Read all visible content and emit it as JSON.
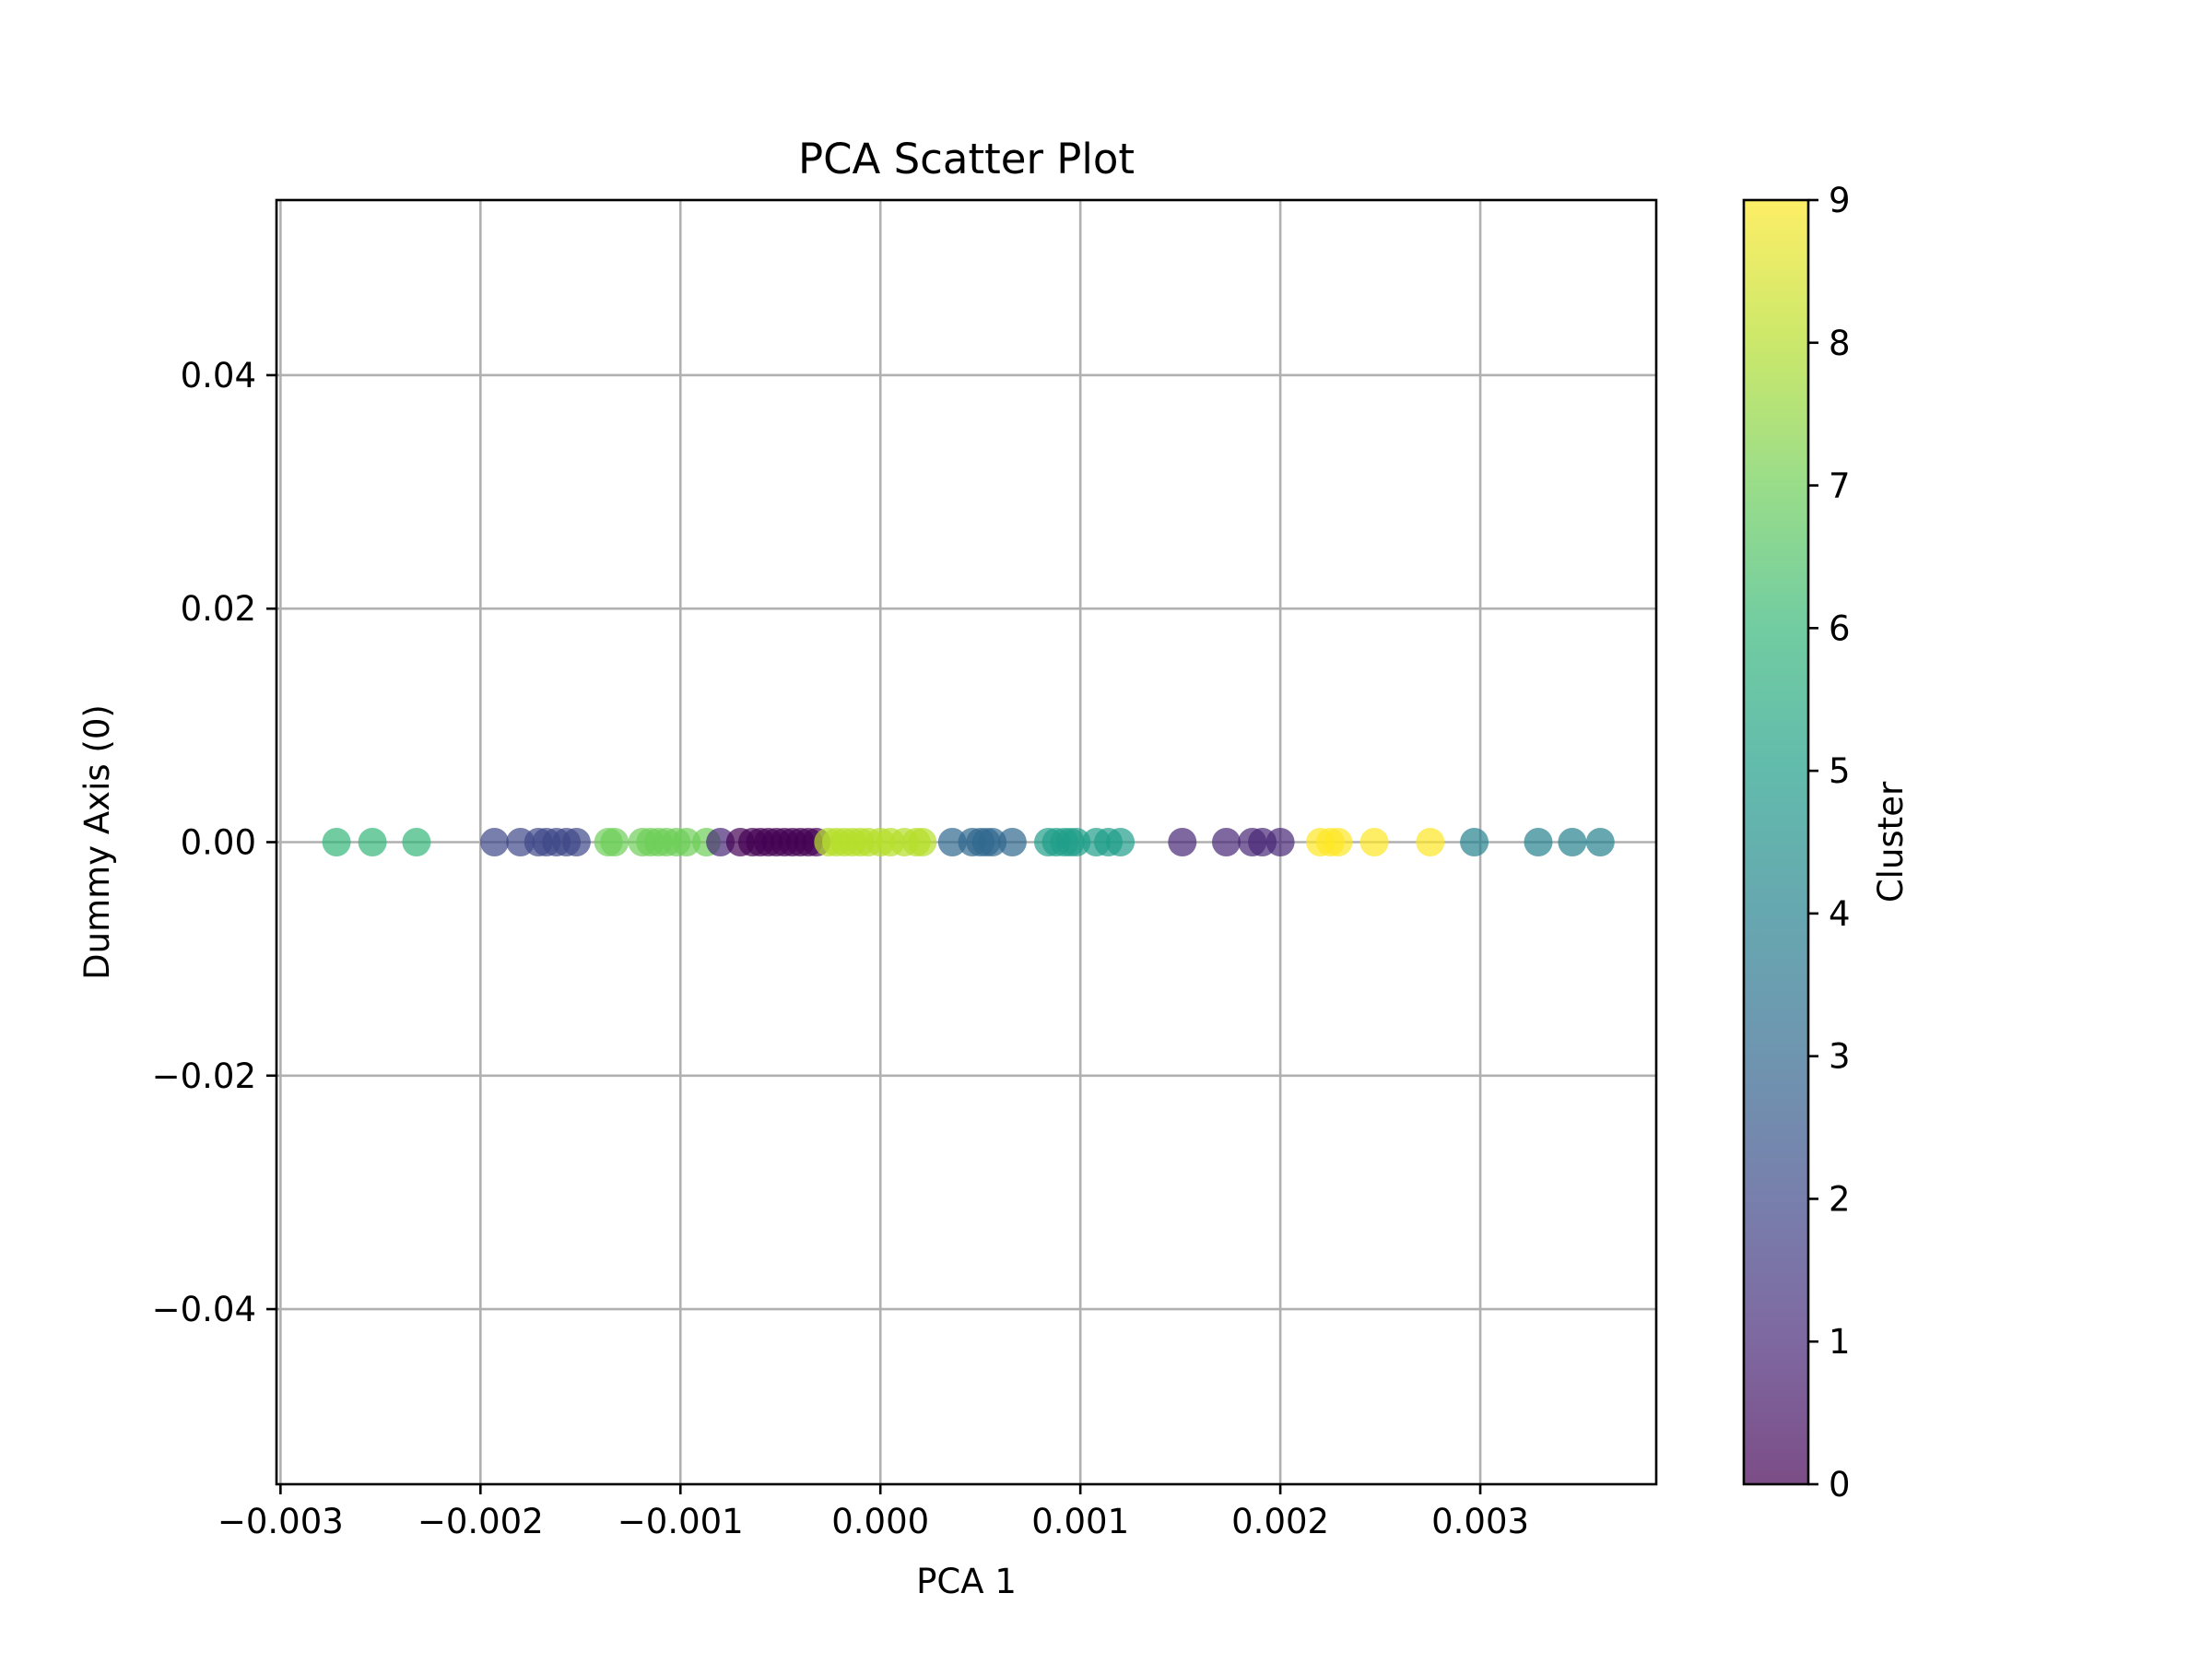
{
  "chart_data": {
    "type": "scatter",
    "title": "PCA Scatter Plot",
    "xlabel": "PCA 1",
    "ylabel": "Dummy Axis (0)",
    "xlim": [
      -0.00302,
      0.00388
    ],
    "ylim": [
      -0.055,
      0.055
    ],
    "grid": true,
    "xticks": [
      -0.003,
      -0.002,
      -0.001,
      0.0,
      0.001,
      0.002,
      0.003
    ],
    "xtick_labels": [
      "−0.003",
      "−0.002",
      "−0.001",
      "0.000",
      "0.001",
      "0.002",
      "0.003"
    ],
    "yticks": [
      0.04,
      0.02,
      0.0,
      -0.02,
      -0.04
    ],
    "ytick_labels": [
      "0.04",
      "0.02",
      "0.00",
      "−0.02",
      "−0.04"
    ],
    "marker_alpha": 0.7,
    "colormap": "viridis",
    "colormap_stops": [
      "#440154",
      "#482878",
      "#3e4989",
      "#31688e",
      "#26828e",
      "#1f9e89",
      "#35b779",
      "#6ece58",
      "#b5de2b",
      "#fde725"
    ],
    "colorbar": {
      "label": "Cluster",
      "range": [
        0,
        9
      ],
      "ticks": [
        0,
        1,
        2,
        3,
        4,
        5,
        6,
        7,
        8,
        9
      ],
      "tick_labels": [
        "0",
        "1",
        "2",
        "3",
        "4",
        "5",
        "6",
        "7",
        "8",
        "9"
      ]
    },
    "points": [
      {
        "x": -0.00272,
        "y": 0,
        "cluster": 6
      },
      {
        "x": -0.00254,
        "y": 0,
        "cluster": 6
      },
      {
        "x": -0.00232,
        "y": 0,
        "cluster": 6
      },
      {
        "x": -0.00193,
        "y": 0,
        "cluster": 2
      },
      {
        "x": -0.0018,
        "y": 0,
        "cluster": 2
      },
      {
        "x": -0.00171,
        "y": 0,
        "cluster": 2
      },
      {
        "x": -0.00167,
        "y": 0,
        "cluster": 2
      },
      {
        "x": -0.00162,
        "y": 0,
        "cluster": 2
      },
      {
        "x": -0.00157,
        "y": 0,
        "cluster": 2
      },
      {
        "x": -0.00152,
        "y": 0,
        "cluster": 2
      },
      {
        "x": -0.00136,
        "y": 0,
        "cluster": 7
      },
      {
        "x": -0.00133,
        "y": 0,
        "cluster": 7
      },
      {
        "x": -0.00119,
        "y": 0,
        "cluster": 7
      },
      {
        "x": -0.00115,
        "y": 0,
        "cluster": 7
      },
      {
        "x": -0.00111,
        "y": 0,
        "cluster": 7
      },
      {
        "x": -0.00107,
        "y": 0,
        "cluster": 7
      },
      {
        "x": -0.00102,
        "y": 0,
        "cluster": 7
      },
      {
        "x": -0.00097,
        "y": 0,
        "cluster": 7
      },
      {
        "x": -0.00087,
        "y": 0,
        "cluster": 7
      },
      {
        "x": -0.0008,
        "y": 0,
        "cluster": 1
      },
      {
        "x": -0.0007,
        "y": 0,
        "cluster": 0
      },
      {
        "x": -0.00064,
        "y": 0,
        "cluster": 0
      },
      {
        "x": -0.0006,
        "y": 0,
        "cluster": 0
      },
      {
        "x": -0.00056,
        "y": 0,
        "cluster": 0
      },
      {
        "x": -0.00052,
        "y": 0,
        "cluster": 0
      },
      {
        "x": -0.00048,
        "y": 0,
        "cluster": 0
      },
      {
        "x": -0.00044,
        "y": 0,
        "cluster": 0
      },
      {
        "x": -0.0004,
        "y": 0,
        "cluster": 0
      },
      {
        "x": -0.00036,
        "y": 0,
        "cluster": 0
      },
      {
        "x": -0.00032,
        "y": 0,
        "cluster": 0
      },
      {
        "x": -0.00026,
        "y": 0,
        "cluster": 8
      },
      {
        "x": -0.00022,
        "y": 0,
        "cluster": 8
      },
      {
        "x": -0.00018,
        "y": 0,
        "cluster": 8
      },
      {
        "x": -0.00014,
        "y": 0,
        "cluster": 8
      },
      {
        "x": -0.0001,
        "y": 0,
        "cluster": 8
      },
      {
        "x": -6e-05,
        "y": 0,
        "cluster": 8
      },
      {
        "x": 0.0,
        "y": 0,
        "cluster": 8
      },
      {
        "x": 5e-05,
        "y": 0,
        "cluster": 8
      },
      {
        "x": 0.00012,
        "y": 0,
        "cluster": 8
      },
      {
        "x": 0.00018,
        "y": 0,
        "cluster": 8
      },
      {
        "x": 0.00021,
        "y": 0,
        "cluster": 8
      },
      {
        "x": 0.00036,
        "y": 0,
        "cluster": 3
      },
      {
        "x": 0.00046,
        "y": 0,
        "cluster": 3
      },
      {
        "x": 0.0005,
        "y": 0,
        "cluster": 3
      },
      {
        "x": 0.00053,
        "y": 0,
        "cluster": 3
      },
      {
        "x": 0.00056,
        "y": 0,
        "cluster": 3
      },
      {
        "x": 0.00066,
        "y": 0,
        "cluster": 3
      },
      {
        "x": 0.00084,
        "y": 0,
        "cluster": 5
      },
      {
        "x": 0.00088,
        "y": 0,
        "cluster": 5
      },
      {
        "x": 0.00092,
        "y": 0,
        "cluster": 5
      },
      {
        "x": 0.00095,
        "y": 0,
        "cluster": 5
      },
      {
        "x": 0.00098,
        "y": 0,
        "cluster": 5
      },
      {
        "x": 0.00108,
        "y": 0,
        "cluster": 5
      },
      {
        "x": 0.00114,
        "y": 0,
        "cluster": 5
      },
      {
        "x": 0.0012,
        "y": 0,
        "cluster": 5
      },
      {
        "x": 0.00151,
        "y": 0,
        "cluster": 1
      },
      {
        "x": 0.00173,
        "y": 0,
        "cluster": 1
      },
      {
        "x": 0.00186,
        "y": 0,
        "cluster": 1
      },
      {
        "x": 0.00191,
        "y": 0,
        "cluster": 1
      },
      {
        "x": 0.002,
        "y": 0,
        "cluster": 1
      },
      {
        "x": 0.0022,
        "y": 0,
        "cluster": 9
      },
      {
        "x": 0.00225,
        "y": 0,
        "cluster": 9
      },
      {
        "x": 0.00229,
        "y": 0,
        "cluster": 9
      },
      {
        "x": 0.00247,
        "y": 0,
        "cluster": 9
      },
      {
        "x": 0.00275,
        "y": 0,
        "cluster": 9
      },
      {
        "x": 0.00297,
        "y": 0,
        "cluster": 4
      },
      {
        "x": 0.00329,
        "y": 0,
        "cluster": 4
      },
      {
        "x": 0.00346,
        "y": 0,
        "cluster": 4
      },
      {
        "x": 0.0036,
        "y": 0,
        "cluster": 4
      }
    ]
  }
}
